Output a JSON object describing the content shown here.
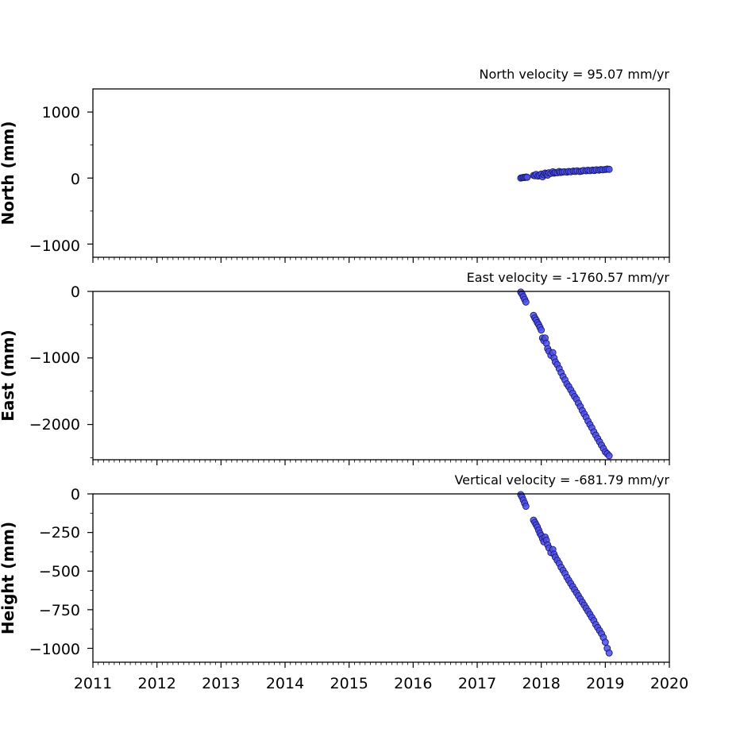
{
  "chart_data": [
    {
      "type": "scatter",
      "title": "North velocity = 95.07 mm/yr",
      "xlabel": "",
      "ylabel": "North (mm)",
      "xlim": [
        2011,
        2020
      ],
      "ylim": [
        -1200,
        1350
      ],
      "yticks": [
        -1000,
        0,
        1000
      ],
      "ytick_labels": [
        "−1000",
        "0",
        "1000"
      ],
      "yminor": [
        -500,
        500
      ],
      "grid": false,
      "trend": {
        "x0": 2017.68,
        "y0": 5,
        "slope": 95.07
      },
      "x": [
        2017.68,
        2017.7,
        2017.72,
        2017.74,
        2017.76,
        2017.78,
        2017.88,
        2017.9,
        2017.92,
        2017.95,
        2017.97,
        2018.0,
        2018.02,
        2018.04,
        2018.06,
        2018.08,
        2018.1,
        2018.12,
        2018.15,
        2018.18,
        2018.2,
        2018.22,
        2018.25,
        2018.28,
        2018.3,
        2018.33,
        2018.36,
        2018.4,
        2018.43,
        2018.46,
        2018.5,
        2018.53,
        2018.56,
        2018.6,
        2018.63,
        2018.66,
        2018.7,
        2018.73,
        2018.76,
        2018.8,
        2018.83,
        2018.86,
        2018.9,
        2018.93,
        2018.96,
        2019.0,
        2019.03,
        2019.06
      ],
      "y": [
        0,
        5,
        10,
        8,
        15,
        12,
        40,
        35,
        55,
        30,
        45,
        60,
        20,
        50,
        75,
        60,
        45,
        80,
        70,
        95,
        75,
        85,
        80,
        100,
        85,
        90,
        95,
        90,
        100,
        95,
        105,
        100,
        110,
        100,
        105,
        115,
        110,
        118,
        112,
        120,
        115,
        125,
        120,
        128,
        125,
        130,
        135,
        132
      ]
    },
    {
      "type": "scatter",
      "title": "East velocity = -1760.57 mm/yr",
      "xlabel": "",
      "ylabel": "East (mm)",
      "xlim": [
        2011,
        2020
      ],
      "ylim": [
        -2530,
        0
      ],
      "yticks": [
        -2000,
        -1000,
        0
      ],
      "ytick_labels": [
        "−2000",
        "−1000",
        "0"
      ],
      "yminor": [
        -2500,
        -1500,
        -500
      ],
      "grid": false,
      "trend": {
        "x0": 2017.68,
        "y0": -10,
        "slope": -1760.57
      },
      "x": [
        2017.68,
        2017.7,
        2017.72,
        2017.74,
        2017.76,
        2017.88,
        2017.9,
        2017.92,
        2017.94,
        2017.96,
        2017.98,
        2018.0,
        2018.02,
        2018.04,
        2018.06,
        2018.08,
        2018.1,
        2018.12,
        2018.15,
        2018.18,
        2018.2,
        2018.22,
        2018.25,
        2018.28,
        2018.31,
        2018.34,
        2018.37,
        2018.4,
        2018.43,
        2018.46,
        2018.49,
        2018.52,
        2018.55,
        2018.58,
        2018.61,
        2018.64,
        2018.67,
        2018.7,
        2018.73,
        2018.76,
        2018.79,
        2018.82,
        2018.85,
        2018.88,
        2018.91,
        2018.94,
        2018.97,
        2019.0,
        2019.03,
        2019.06
      ],
      "y": [
        -10,
        -40,
        -80,
        -120,
        -160,
        -360,
        -400,
        -430,
        -470,
        -500,
        -540,
        -580,
        -700,
        -740,
        -700,
        -780,
        -860,
        -900,
        -960,
        -920,
        -1000,
        -1060,
        -1100,
        -1160,
        -1220,
        -1280,
        -1330,
        -1390,
        -1430,
        -1480,
        -1530,
        -1580,
        -1620,
        -1680,
        -1730,
        -1790,
        -1840,
        -1890,
        -1950,
        -2000,
        -2050,
        -2110,
        -2160,
        -2210,
        -2260,
        -2310,
        -2360,
        -2410,
        -2440,
        -2470
      ]
    },
    {
      "type": "scatter",
      "title": "Vertical velocity = -681.79 mm/yr",
      "xlabel": "",
      "ylabel": "Height (mm)",
      "xlim": [
        2011,
        2020
      ],
      "xticks": [
        2011,
        2012,
        2013,
        2014,
        2015,
        2016,
        2017,
        2018,
        2019,
        2020
      ],
      "xtick_labels": [
        "2011",
        "2012",
        "2013",
        "2014",
        "2015",
        "2016",
        "2017",
        "2018",
        "2019",
        "2020"
      ],
      "ylim": [
        -1090,
        0
      ],
      "yticks": [
        -1000,
        -750,
        -500,
        -250,
        0
      ],
      "ytick_labels": [
        "−1000",
        "−750",
        "−500",
        "−250",
        "0"
      ],
      "yminor": [
        -875,
        -625,
        -375,
        -125
      ],
      "grid": false,
      "trend": {
        "x0": 2017.68,
        "y0": -5,
        "slope": -681.79
      },
      "x": [
        2017.68,
        2017.7,
        2017.72,
        2017.74,
        2017.76,
        2017.88,
        2017.9,
        2017.92,
        2017.94,
        2017.96,
        2017.98,
        2018.0,
        2018.02,
        2018.04,
        2018.06,
        2018.08,
        2018.1,
        2018.12,
        2018.15,
        2018.18,
        2018.2,
        2018.22,
        2018.25,
        2018.28,
        2018.31,
        2018.34,
        2018.37,
        2018.4,
        2018.43,
        2018.46,
        2018.49,
        2018.52,
        2018.55,
        2018.58,
        2018.61,
        2018.64,
        2018.67,
        2018.7,
        2018.73,
        2018.76,
        2018.79,
        2018.82,
        2018.85,
        2018.88,
        2018.91,
        2018.94,
        2018.97,
        2019.0,
        2019.03,
        2019.06
      ],
      "y": [
        -5,
        -20,
        -40,
        -60,
        -80,
        -170,
        -185,
        -200,
        -215,
        -235,
        -255,
        -270,
        -290,
        -310,
        -280,
        -300,
        -330,
        -350,
        -380,
        -360,
        -390,
        -410,
        -430,
        -450,
        -475,
        -495,
        -515,
        -540,
        -560,
        -580,
        -600,
        -620,
        -640,
        -660,
        -680,
        -700,
        -720,
        -740,
        -760,
        -780,
        -800,
        -820,
        -845,
        -865,
        -885,
        -905,
        -930,
        -960,
        -1000,
        -1030
      ]
    }
  ],
  "colors": {
    "marker_fill": "#4a4ef0",
    "marker_edge": "#1a1a66",
    "axes": "#000000"
  }
}
